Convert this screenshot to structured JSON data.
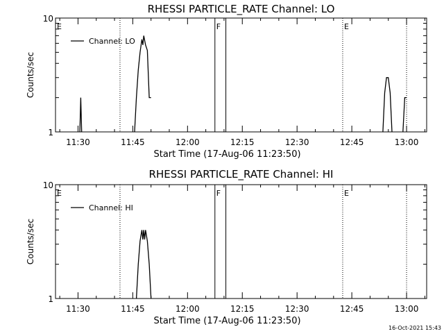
{
  "chart_data": [
    {
      "type": "line",
      "title": "RHESSI PARTICLE_RATE Channel: LO",
      "xlabel": "Start Time (17-Aug-06 11:23:50)",
      "ylabel": "Counts/sec",
      "yscale": "log",
      "ylim": [
        1,
        10
      ],
      "yticks": [
        "1",
        "10"
      ],
      "xlim": [
        "11:23:50",
        "13:05:30"
      ],
      "xticks": [
        "11:30",
        "11:45",
        "12:00",
        "12:15",
        "12:30",
        "12:45",
        "13:00"
      ],
      "grid": false,
      "legend_position": "top-left",
      "series": [
        {
          "name": "Channel: LO",
          "color": "#000000",
          "points": [
            [
              "11:30:30",
              1
            ],
            [
              "11:30:45",
              2.0
            ],
            [
              "11:31:00",
              1
            ],
            [
              "11:45:30",
              1
            ],
            [
              "11:46:00",
              2.0
            ],
            [
              "11:46:30",
              3.5
            ],
            [
              "11:47:00",
              5.0
            ],
            [
              "11:47:30",
              6.5
            ],
            [
              "11:47:45",
              5.8
            ],
            [
              "11:48:00",
              7.0
            ],
            [
              "11:48:30",
              5.8
            ],
            [
              "11:49:00",
              5.2
            ],
            [
              "11:49:30",
              2.0
            ],
            [
              "11:50:00",
              2.0
            ],
            [
              "12:53:30",
              1
            ],
            [
              "12:54:00",
              2.2
            ],
            [
              "12:54:30",
              3.0
            ],
            [
              "12:55:00",
              3.0
            ],
            [
              "12:55:30",
              2.2
            ],
            [
              "12:56:00",
              1
            ],
            [
              "12:59:00",
              1
            ],
            [
              "12:59:30",
              2.0
            ],
            [
              "13:00:00",
              2.0
            ]
          ]
        }
      ],
      "markers": [
        {
          "label": "E",
          "time": "11:23:50",
          "style": "dotted"
        },
        {
          "label": "",
          "time": "11:41:30",
          "style": "dotted"
        },
        {
          "label": "F",
          "time": "12:07:30",
          "style": "solid"
        },
        {
          "label": "",
          "time": "12:10:30",
          "style": "solid"
        },
        {
          "label": "E",
          "time": "12:42:30",
          "style": "dotted"
        },
        {
          "label": "",
          "time": "13:00:00",
          "style": "dotted"
        }
      ]
    },
    {
      "type": "line",
      "title": "RHESSI PARTICLE_RATE Channel: HI",
      "xlabel": "Start Time (17-Aug-06 11:23:50)",
      "ylabel": "Counts/sec",
      "yscale": "log",
      "ylim": [
        1,
        10
      ],
      "yticks": [
        "1",
        "10"
      ],
      "xlim": [
        "11:23:50",
        "13:05:30"
      ],
      "xticks": [
        "11:30",
        "11:45",
        "12:00",
        "12:15",
        "12:30",
        "12:45",
        "13:00"
      ],
      "grid": false,
      "legend_position": "top-left",
      "series": [
        {
          "name": "Channel: HI",
          "color": "#000000",
          "points": [
            [
              "11:46:00",
              1
            ],
            [
              "11:46:30",
              2.0
            ],
            [
              "11:47:00",
              3.2
            ],
            [
              "11:47:30",
              4.0
            ],
            [
              "11:47:45",
              3.3
            ],
            [
              "11:48:00",
              4.0
            ],
            [
              "11:48:15",
              3.3
            ],
            [
              "11:48:30",
              4.0
            ],
            [
              "11:49:00",
              3.2
            ],
            [
              "11:49:30",
              2.0
            ],
            [
              "11:50:00",
              1
            ]
          ]
        }
      ],
      "markers": [
        {
          "label": "E",
          "time": "11:23:50",
          "style": "dotted"
        },
        {
          "label": "",
          "time": "11:41:30",
          "style": "dotted"
        },
        {
          "label": "F",
          "time": "12:07:30",
          "style": "solid"
        },
        {
          "label": "",
          "time": "12:10:30",
          "style": "solid"
        },
        {
          "label": "E",
          "time": "12:42:30",
          "style": "dotted"
        },
        {
          "label": "",
          "time": "13:00:00",
          "style": "dotted"
        }
      ]
    }
  ],
  "footer": {
    "timestamp": "16-Oct-2021 15:43"
  }
}
